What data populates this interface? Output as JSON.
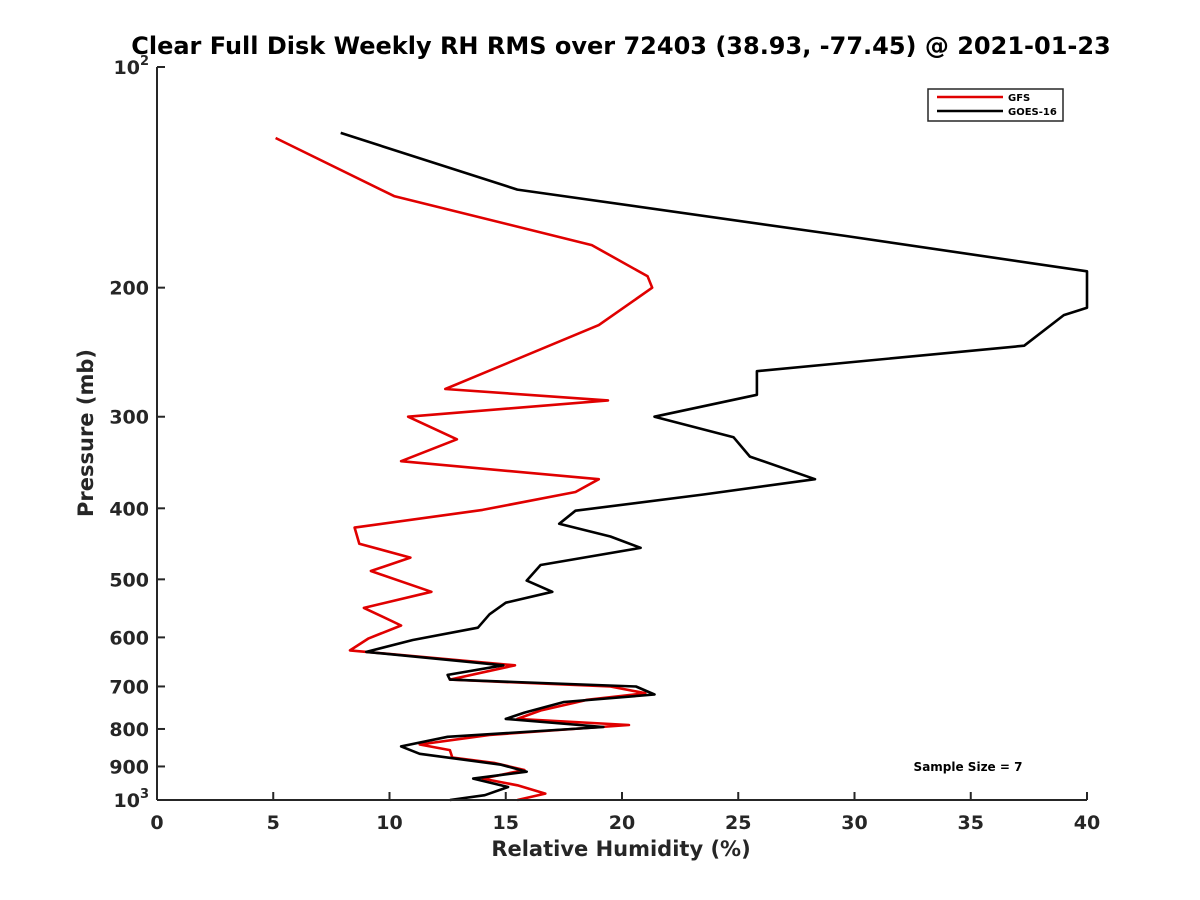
{
  "chart_data": {
    "type": "line",
    "title": "Clear Full Disk Weekly RH RMS over 72403 (38.93, -77.45) @ 2021-01-23",
    "xlabel": "Relative Humidity (%)",
    "ylabel": "Pressure (mb)",
    "xlim": [
      0,
      40
    ],
    "ylim": [
      100,
      1000
    ],
    "y_scale": "log",
    "y_reversed": true,
    "grid": false,
    "legend_position": "top-right",
    "x_ticks": [
      "0",
      "5",
      "10",
      "15",
      "20",
      "25",
      "30",
      "35",
      "40"
    ],
    "y_ticks": [
      {
        "value": 100,
        "base": "10",
        "exp": "2"
      },
      {
        "value": 200,
        "label": "200"
      },
      {
        "value": 300,
        "label": "300"
      },
      {
        "value": 400,
        "label": "400"
      },
      {
        "value": 500,
        "label": "500"
      },
      {
        "value": 600,
        "label": "600"
      },
      {
        "value": 700,
        "label": "700"
      },
      {
        "value": 800,
        "label": "800"
      },
      {
        "value": 900,
        "label": "900"
      },
      {
        "value": 1000,
        "base": "10",
        "exp": "3"
      }
    ],
    "annotation": "Sample Size = 7",
    "series": [
      {
        "name": "GFS",
        "color": "#e00000",
        "points": [
          [
            5.1,
            125
          ],
          [
            10.2,
            150
          ],
          [
            18.7,
            175
          ],
          [
            21.1,
            193
          ],
          [
            21.3,
            200
          ],
          [
            19.0,
            225
          ],
          [
            12.4,
            275
          ],
          [
            19.4,
            285
          ],
          [
            10.8,
            300
          ],
          [
            12.9,
            322
          ],
          [
            10.5,
            345
          ],
          [
            19.0,
            365
          ],
          [
            18.0,
            380
          ],
          [
            14.0,
            402
          ],
          [
            8.5,
            425
          ],
          [
            8.7,
            447
          ],
          [
            10.9,
            467
          ],
          [
            9.2,
            487
          ],
          [
            11.8,
            520
          ],
          [
            8.9,
            547
          ],
          [
            10.5,
            578
          ],
          [
            9.1,
            602
          ],
          [
            8.3,
            625
          ],
          [
            15.4,
            655
          ],
          [
            12.6,
            685
          ],
          [
            19.5,
            700
          ],
          [
            21.0,
            715
          ],
          [
            18.5,
            730
          ],
          [
            16.5,
            755
          ],
          [
            15.5,
            775
          ],
          [
            20.3,
            790
          ],
          [
            14.3,
            815
          ],
          [
            11.3,
            840
          ],
          [
            12.6,
            855
          ],
          [
            12.7,
            875
          ],
          [
            14.5,
            890
          ],
          [
            15.8,
            910
          ],
          [
            14.0,
            935
          ],
          [
            15.5,
            955
          ],
          [
            16.7,
            980
          ],
          [
            15.5,
            1000
          ]
        ]
      },
      {
        "name": "GOES-16",
        "color": "#000000",
        "points": [
          [
            7.9,
            123
          ],
          [
            15.5,
            147
          ],
          [
            29.6,
            170
          ],
          [
            40.0,
            190
          ],
          [
            40.0,
            213
          ],
          [
            39.0,
            218
          ],
          [
            37.3,
            240
          ],
          [
            25.8,
            260
          ],
          [
            25.8,
            280
          ],
          [
            21.4,
            300
          ],
          [
            24.8,
            320
          ],
          [
            25.5,
            340
          ],
          [
            28.3,
            365
          ],
          [
            23.5,
            383
          ],
          [
            18.0,
            403
          ],
          [
            17.3,
            420
          ],
          [
            19.5,
            437
          ],
          [
            20.8,
            453
          ],
          [
            16.5,
            478
          ],
          [
            15.9,
            502
          ],
          [
            17.0,
            520
          ],
          [
            15.0,
            538
          ],
          [
            14.3,
            558
          ],
          [
            13.8,
            582
          ],
          [
            11.0,
            605
          ],
          [
            9.0,
            628
          ],
          [
            14.9,
            655
          ],
          [
            12.5,
            675
          ],
          [
            12.6,
            685
          ],
          [
            20.6,
            700
          ],
          [
            21.4,
            718
          ],
          [
            17.5,
            735
          ],
          [
            15.8,
            760
          ],
          [
            15.0,
            775
          ],
          [
            19.2,
            795
          ],
          [
            12.5,
            820
          ],
          [
            10.5,
            845
          ],
          [
            11.3,
            865
          ],
          [
            14.8,
            895
          ],
          [
            15.9,
            915
          ],
          [
            13.6,
            935
          ],
          [
            15.1,
            960
          ],
          [
            14.1,
            985
          ],
          [
            12.6,
            1000
          ]
        ]
      }
    ]
  }
}
